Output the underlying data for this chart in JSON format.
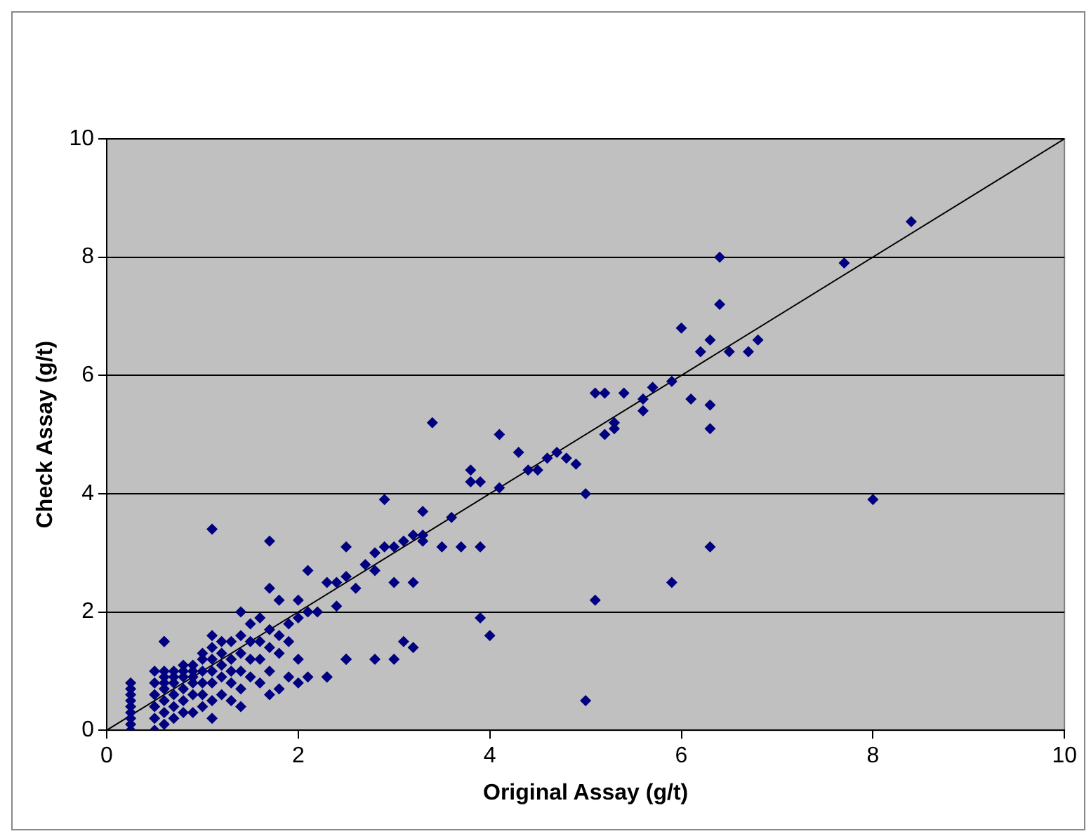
{
  "chart_data": {
    "type": "scatter",
    "xlabel": "Original Assay (g/t)",
    "ylabel": "Check Assay (g/t)",
    "xlim": [
      0,
      10
    ],
    "ylim": [
      0,
      10
    ],
    "xticks": [
      0,
      2,
      4,
      6,
      8,
      10
    ],
    "yticks": [
      0,
      2,
      4,
      6,
      8,
      10
    ],
    "grid": "y",
    "series": [
      {
        "type": "scatter",
        "color": "#000080",
        "marker": "diamond",
        "x": [
          0.25,
          0.25,
          0.25,
          0.25,
          0.25,
          0.25,
          0.25,
          0.25,
          0.25,
          0.5,
          0.5,
          0.5,
          0.5,
          0.5,
          0.5,
          0.6,
          0.6,
          0.6,
          0.6,
          0.6,
          0.6,
          0.6,
          0.6,
          0.7,
          0.7,
          0.7,
          0.7,
          0.7,
          0.7,
          0.8,
          0.8,
          0.8,
          0.8,
          0.8,
          0.8,
          0.9,
          0.9,
          0.9,
          0.9,
          0.9,
          0.9,
          1.0,
          1.0,
          1.0,
          1.0,
          1.0,
          1.0,
          1.1,
          1.1,
          1.1,
          1.1,
          1.1,
          1.1,
          1.1,
          1.2,
          1.2,
          1.2,
          1.2,
          1.2,
          1.3,
          1.3,
          1.3,
          1.3,
          1.3,
          1.4,
          1.4,
          1.4,
          1.4,
          1.4,
          1.4,
          1.5,
          1.5,
          1.5,
          1.5,
          1.6,
          1.6,
          1.6,
          1.6,
          1.7,
          1.7,
          1.7,
          1.7,
          1.7,
          1.8,
          1.8,
          1.8,
          1.8,
          1.9,
          1.9,
          1.9,
          2.0,
          2.0,
          2.0,
          2.0,
          2.1,
          2.1,
          2.1,
          2.2,
          2.3,
          2.3,
          2.4,
          2.4,
          2.5,
          2.5,
          2.5,
          2.6,
          2.7,
          2.8,
          2.8,
          0.6,
          1.1,
          1.7,
          2.9,
          2.9,
          3.0,
          3.0,
          3.1,
          3.2,
          3.3,
          3.3,
          3.3,
          3.2,
          3.5,
          3.6,
          3.7,
          3.9,
          3.4,
          3.8,
          3.8,
          3.9,
          4.1,
          4.1,
          4.3,
          4.4,
          4.5,
          4.6,
          4.7,
          4.8,
          4.9,
          5.0,
          5.1,
          5.2,
          5.2,
          5.3,
          5.3,
          5.4,
          5.6,
          5.6,
          5.7,
          5.9,
          6.0,
          6.1,
          6.2,
          6.3,
          6.3,
          6.3,
          6.4,
          6.4,
          6.5,
          6.7,
          6.8,
          7.7,
          8.4,
          8.0,
          3.9,
          4.0,
          5.1,
          5.0,
          5.9,
          6.3,
          3.1,
          3.2,
          2.8,
          3.0,
          2.5,
          2.3
        ],
        "values": [
          0,
          0.1,
          0.2,
          0.3,
          0.4,
          0.5,
          0.6,
          0.7,
          0.8,
          0,
          0.2,
          0.4,
          0.6,
          0.8,
          1.0,
          0.1,
          0.3,
          0.5,
          0.7,
          0.8,
          0.9,
          1.0,
          1.5,
          0.2,
          0.4,
          0.6,
          0.8,
          0.9,
          1.0,
          0.3,
          0.5,
          0.7,
          0.9,
          1.0,
          1.1,
          0.3,
          0.6,
          0.8,
          0.9,
          1.0,
          1.1,
          0.4,
          0.6,
          0.8,
          1.0,
          1.2,
          1.3,
          0.2,
          0.5,
          0.8,
          1.0,
          1.2,
          1.4,
          1.6,
          0.6,
          0.9,
          1.1,
          1.3,
          1.5,
          0.5,
          0.8,
          1.0,
          1.2,
          1.5,
          0.4,
          0.7,
          1.0,
          1.3,
          1.6,
          2.0,
          0.9,
          1.2,
          1.5,
          1.8,
          0.8,
          1.2,
          1.5,
          1.9,
          0.6,
          1.0,
          1.4,
          1.7,
          2.4,
          0.7,
          1.3,
          1.6,
          2.2,
          0.9,
          1.5,
          1.8,
          0.8,
          1.2,
          1.9,
          2.2,
          0.9,
          2.0,
          2.7,
          2.0,
          0.9,
          2.5,
          2.1,
          2.5,
          1.2,
          2.6,
          3.1,
          2.4,
          2.8,
          2.7,
          3.0,
          1.5,
          3.4,
          3.2,
          3.9,
          3.1,
          3.1,
          2.5,
          3.2,
          3.3,
          3.2,
          3.3,
          3.7,
          2.5,
          3.1,
          3.6,
          3.1,
          3.1,
          5.2,
          4.4,
          4.2,
          4.2,
          5.0,
          4.1,
          4.7,
          4.4,
          4.4,
          4.6,
          4.7,
          4.6,
          4.5,
          4.0,
          5.7,
          5.7,
          5.0,
          5.1,
          5.2,
          5.7,
          5.4,
          5.6,
          5.8,
          5.9,
          6.8,
          5.6,
          6.4,
          6.6,
          5.5,
          5.1,
          8.0,
          7.2,
          6.4,
          6.4,
          6.6,
          7.9,
          8.6,
          3.9,
          1.9,
          1.6,
          2.2,
          0.5,
          2.5,
          3.1,
          1.5,
          1.4,
          1.2,
          1.2,
          1.2,
          0.9
        ]
      },
      {
        "type": "line",
        "color": "#000000",
        "marker": "none",
        "x": [
          0,
          10
        ],
        "values": [
          0,
          10
        ]
      }
    ]
  }
}
